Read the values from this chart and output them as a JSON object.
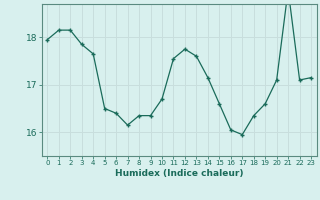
{
  "x": [
    0,
    1,
    2,
    3,
    4,
    5,
    6,
    7,
    8,
    9,
    10,
    11,
    12,
    13,
    14,
    15,
    16,
    17,
    18,
    19,
    20,
    21,
    22,
    23
  ],
  "y": [
    17.95,
    18.15,
    18.15,
    17.85,
    17.65,
    16.5,
    16.4,
    16.15,
    16.35,
    16.35,
    16.7,
    17.55,
    17.75,
    17.6,
    17.15,
    16.6,
    16.05,
    15.95,
    16.35,
    16.6,
    17.1,
    19.0,
    17.1,
    17.15
  ],
  "xlabel": "Humidex (Indice chaleur)",
  "yticks": [
    16,
    17,
    18
  ],
  "xticks": [
    0,
    1,
    2,
    3,
    4,
    5,
    6,
    7,
    8,
    9,
    10,
    11,
    12,
    13,
    14,
    15,
    16,
    17,
    18,
    19,
    20,
    21,
    22,
    23
  ],
  "line_color": "#1a6b5a",
  "bg_color": "#d8f0ee",
  "grid_color": "#c8dedd",
  "axis_color": "#5a8a80",
  "ylim": [
    15.5,
    18.7
  ],
  "xlim": [
    -0.5,
    23.5
  ]
}
